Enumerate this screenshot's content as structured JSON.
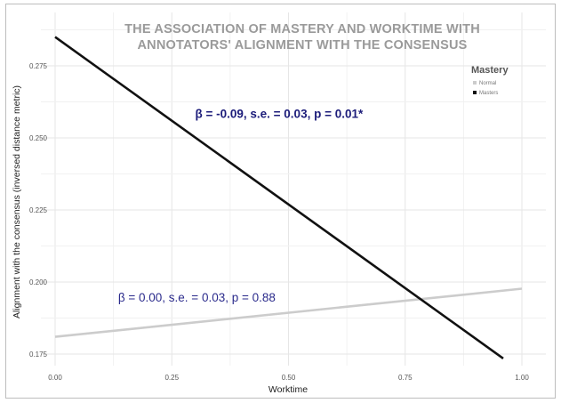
{
  "chart_data": {
    "type": "line",
    "title_lines": [
      "THE ASSOCIATION OF MASTERY AND WORKTIME WITH",
      "ANNOTATORS' ALIGNMENT WITH THE CONSENSUS"
    ],
    "xlabel": "Worktime",
    "ylabel": "Alignment with the consensus (inversed distance metric)",
    "xlim": [
      0.0,
      1.0
    ],
    "ylim": [
      0.173,
      0.29
    ],
    "x_ticks": [
      0.0,
      0.25,
      0.5,
      0.75,
      1.0
    ],
    "x_tick_labels": [
      "0.00",
      "0.25",
      "0.50",
      "0.75",
      "1.00"
    ],
    "y_ticks": [
      0.175,
      0.2,
      0.225,
      0.25,
      0.275
    ],
    "y_tick_labels": [
      "0.175",
      "0.200",
      "0.225",
      "0.250",
      "0.275"
    ],
    "grid": true,
    "legend": {
      "title": "Mastery",
      "placement": "top-right",
      "entries": [
        "Normal",
        "Masters"
      ]
    },
    "series": [
      {
        "name": "Normal",
        "color": "#cccccc",
        "x": [
          0.0,
          1.0
        ],
        "y": [
          0.181,
          0.1977
        ]
      },
      {
        "name": "Masters",
        "color": "#111111",
        "x": [
          0.0,
          0.96
        ],
        "y": [
          0.285,
          0.1735
        ]
      }
    ],
    "annotations": [
      {
        "text": "β = -0.09, s.e. = 0.03, p = 0.01*",
        "series": "Masters",
        "x": 0.3,
        "y": 0.2585,
        "style": "bold"
      },
      {
        "text": "β = 0.00, s.e. = 0.03, p = 0.88",
        "series": "Normal",
        "x": 0.135,
        "y": 0.1947,
        "style": "normal"
      }
    ]
  }
}
